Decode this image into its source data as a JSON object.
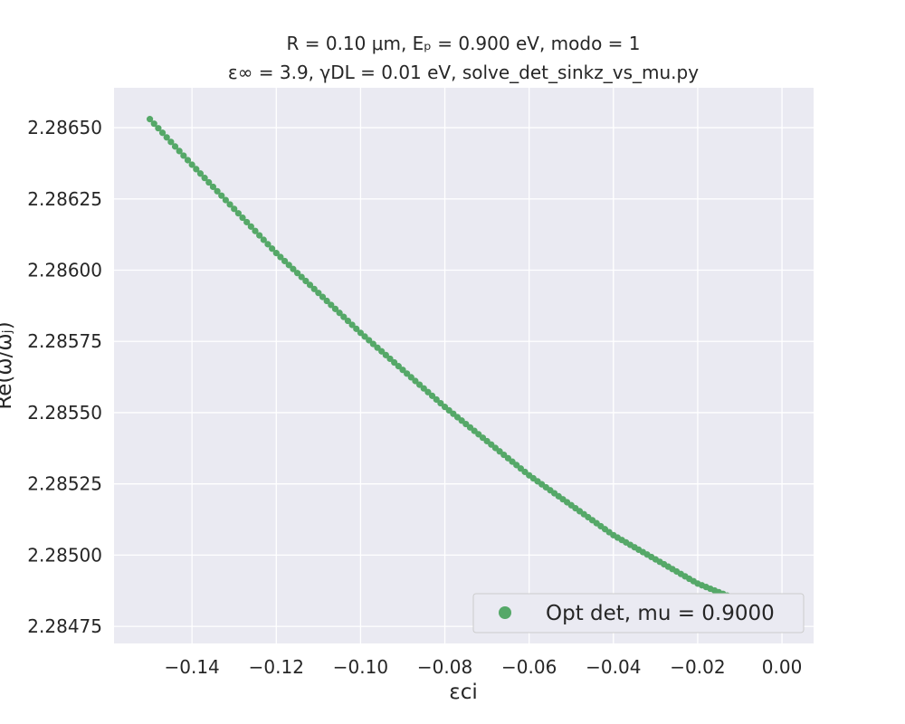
{
  "chart_data": {
    "type": "scatter",
    "title_line1": "R = 0.10 μm, Eₚ = 0.900 eV, modo = 1",
    "title_line2": "ε∞ = 3.9, γDL = 0.01 eV, solve_det_sinkz_vs_mu.py",
    "xlabel": "εci",
    "ylabel": "Re(ω/ωⱼ)",
    "xlim": [
      -0.1585,
      0.0075
    ],
    "ylim": [
      2.28469,
      2.28664
    ],
    "xticks": [
      -0.14,
      -0.12,
      -0.1,
      -0.08,
      -0.06,
      -0.04,
      -0.02,
      0.0
    ],
    "xtick_labels": [
      "−0.14",
      "−0.12",
      "−0.10",
      "−0.08",
      "−0.06",
      "−0.04",
      "−0.02",
      "0.00"
    ],
    "yticks": [
      2.28475,
      2.285,
      2.28525,
      2.2855,
      2.28575,
      2.286,
      2.28625,
      2.2865
    ],
    "ytick_labels": [
      "2.28475",
      "2.28500",
      "2.28525",
      "2.28550",
      "2.28575",
      "2.28600",
      "2.28625",
      "2.28650"
    ],
    "grid": true,
    "legend_position": "lower-right",
    "series": [
      {
        "name": "Opt det, mu = 0.9000",
        "color": "#55a868",
        "x_start": -0.15,
        "x_end": 0.0,
        "n_points": 151,
        "curve_x": [
          -0.15,
          -0.14,
          -0.12,
          -0.1,
          -0.08,
          -0.06,
          -0.04,
          -0.02,
          0.0
        ],
        "curve_y": [
          2.28653,
          2.28637,
          2.28606,
          2.28578,
          2.28552,
          2.28528,
          2.28507,
          2.2849,
          2.28478
        ]
      }
    ]
  }
}
